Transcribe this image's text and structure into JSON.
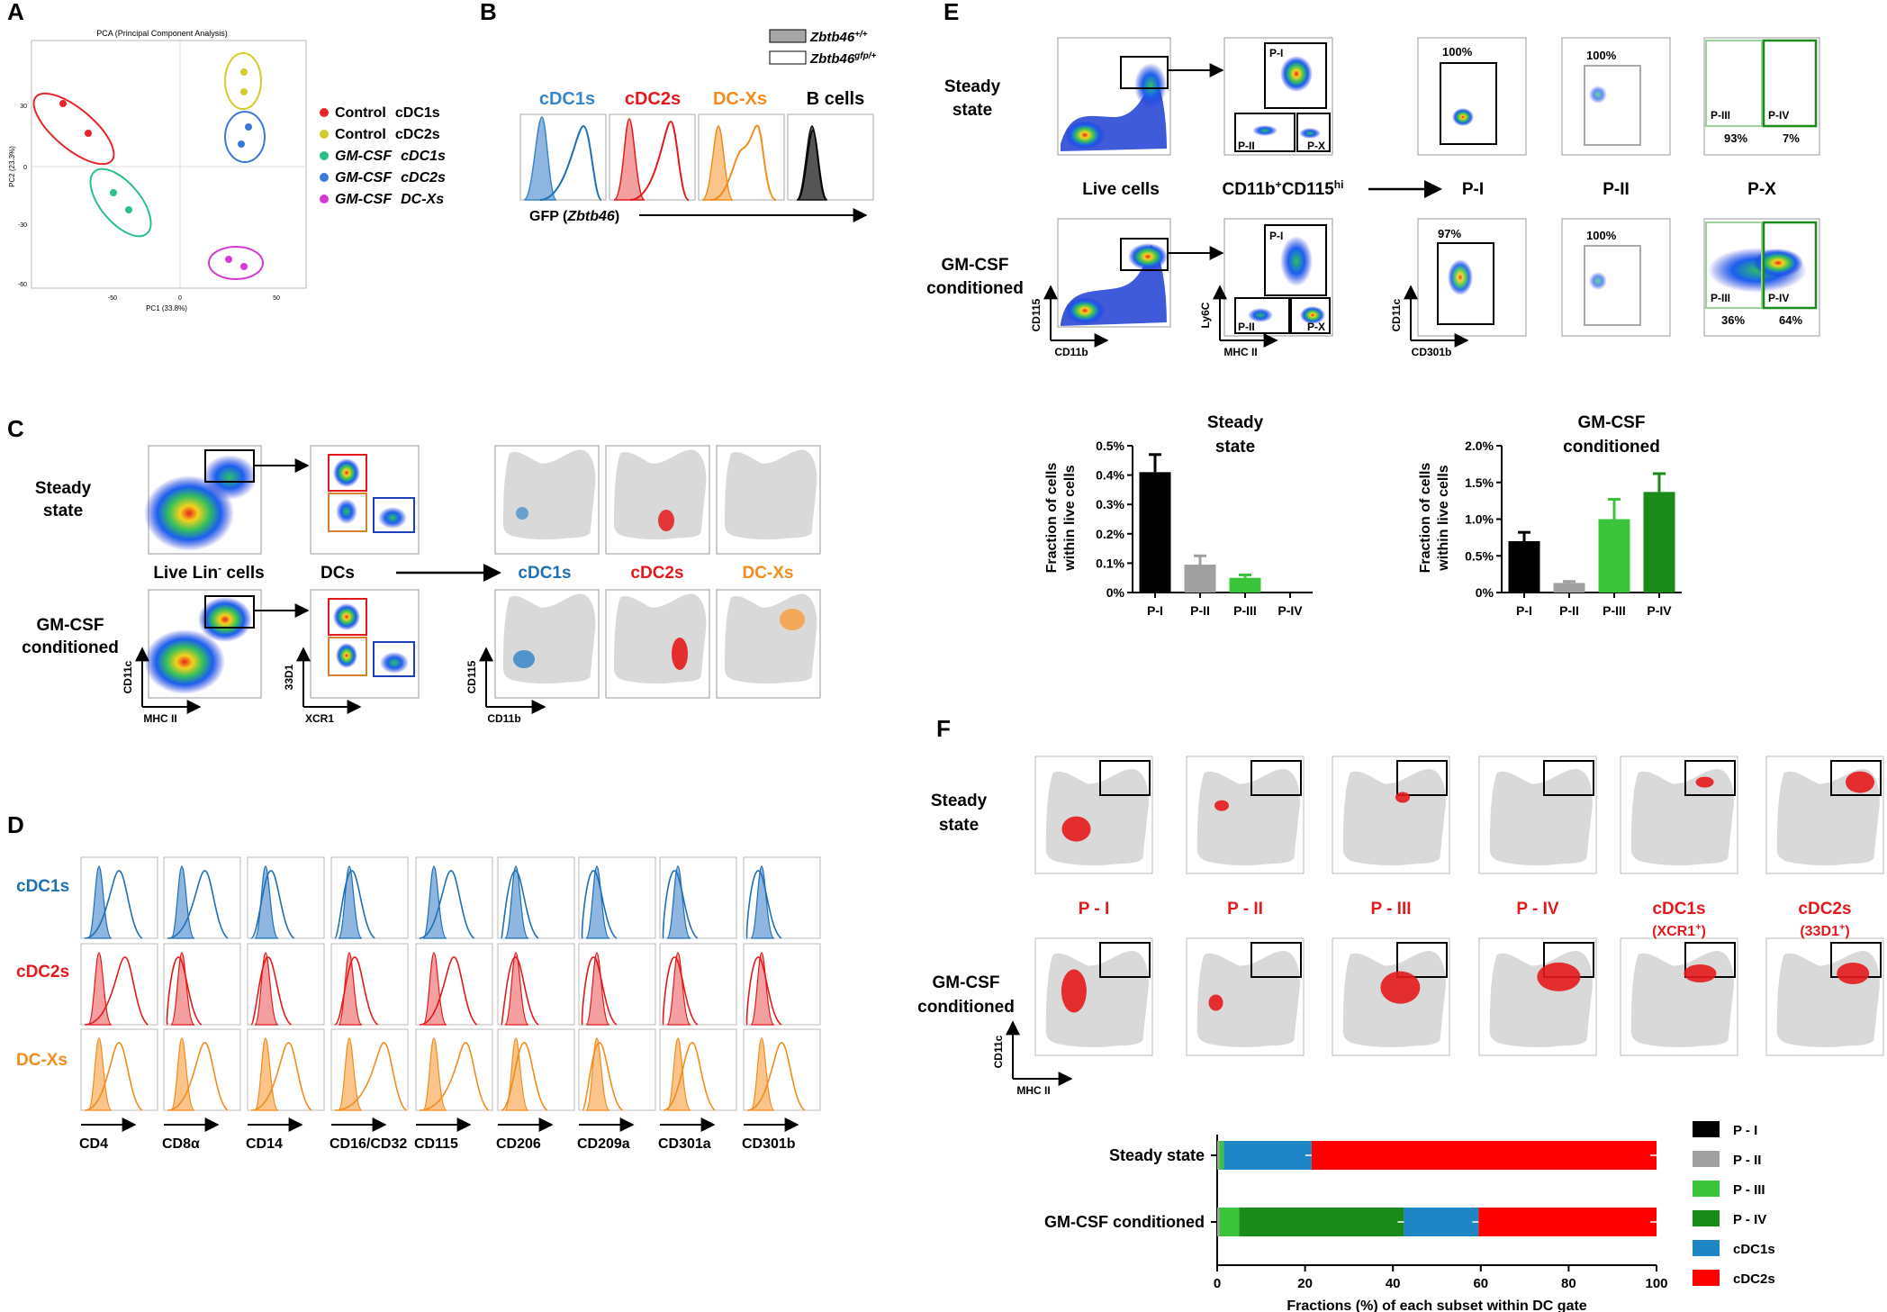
{
  "colors": {
    "control_cdc1": "#e8242a",
    "control_cdc2": "#d4cc2a",
    "gm_cdc1": "#2bbf8a",
    "gm_cdc2": "#3a78d8",
    "gm_dcx": "#d63ad6",
    "cdc1": "#1f6fb5",
    "cdc2": "#e31a1c",
    "dcx": "#f28c1c",
    "bcell": "#222222",
    "pI": "#000000",
    "pII": "#a0a0a0",
    "pIII": "#3bc43b",
    "pIV": "#1a8a1a",
    "bar_cdc1": "#1f86c6",
    "bar_cdc2": "#ff0000",
    "gray_cloud": "#d9d9d9"
  },
  "panels": {
    "A": "A",
    "B": "B",
    "C": "C",
    "D": "D",
    "E": "E",
    "F": "F"
  },
  "panelA": {
    "title": "PCA (Principal Component Analysis)",
    "xlabel": "PC1 (33.8%)",
    "ylabel": "PC2 (23.3%)",
    "xticks": [
      "-50",
      "0",
      "50"
    ],
    "yticks": [
      "30",
      "0",
      "-30",
      "-60"
    ],
    "legend": [
      {
        "a": "Control",
        "b": "cDC1s",
        "italic": false,
        "color": "#e8242a"
      },
      {
        "a": "Control",
        "b": "cDC2s",
        "italic": false,
        "color": "#d4cc2a"
      },
      {
        "a": "GM-CSF",
        "b": "cDC1s",
        "italic": true,
        "color": "#2bbf8a"
      },
      {
        "a": "GM-CSF",
        "b": "cDC2s",
        "italic": true,
        "color": "#3a78d8"
      },
      {
        "a": "GM-CSF",
        "b": "DC-Xs",
        "italic": true,
        "color": "#d63ad6"
      }
    ]
  },
  "panelB": {
    "legend1": "Zbtb46",
    "legend1_sup": "+/+",
    "legend2": "Zbtb46",
    "legend2_sup": "gfp/+",
    "titles": [
      "cDC1s",
      "cDC2s",
      "DC-Xs",
      "B cells"
    ],
    "xlabel_pre": "GFP (",
    "xlabel_gene": "Zbtb46",
    "xlabel_post": ")"
  },
  "panelC": {
    "row1": "Steady",
    "row1b": "state",
    "row2": "GM-CSF",
    "row2b": "conditioned",
    "live": "Live Lin",
    "live_sup": "-",
    "live_post": " cells",
    "dcs": "DCs",
    "subsets": [
      "cDC1s",
      "cDC2s",
      "DC-Xs"
    ],
    "ax1x": "MHC II",
    "ax1y": "CD11c",
    "ax2x": "XCR1",
    "ax2y": "33D1",
    "ax3x": "CD11b",
    "ax3y": "CD115"
  },
  "panelD": {
    "rows": [
      "cDC1s",
      "cDC2s",
      "DC-Xs"
    ],
    "markers": [
      "CD4",
      "CD8α",
      "CD14",
      "CD16/CD32",
      "CD115",
      "CD206",
      "CD209a",
      "CD301a",
      "CD301b"
    ]
  },
  "panelE": {
    "row1": "Steady",
    "row1b": "state",
    "row2": "GM-CSF",
    "row2b": "conditioned",
    "col_live": "Live cells",
    "col_cd11b": "CD11b",
    "col_cd11b_sup": "+",
    "col_cd115": "CD115",
    "col_cd115_sup": "hi",
    "col_pI": "P-I",
    "col_pII": "P-II",
    "col_pX": "P-X",
    "gate_pI": "P-I",
    "gate_pII": "P-II",
    "gate_pX": "P-X",
    "gate_pIII": "P-III",
    "gate_pIV": "P-IV",
    "steady_pct": [
      "100%",
      "100%",
      "93%",
      "7%"
    ],
    "gm_pct": [
      "97%",
      "100%",
      "36%",
      "64%"
    ],
    "ax_live_x": "CD11b",
    "ax_live_y": "CD115",
    "ax_mid_x": "MHC II",
    "ax_mid_y": "Ly6C",
    "ax_p_x": "CD301b",
    "ax_p_y": "CD11c",
    "ylabel1": "Fraction of cells",
    "ylabel2": "within live cells"
  },
  "chart_data": [
    {
      "type": "bar",
      "title": "Steady state",
      "title_lines": [
        "Steady",
        "state"
      ],
      "categories": [
        "P-I",
        "P-II",
        "P-III",
        "P-IV"
      ],
      "values": [
        0.41,
        0.095,
        0.05,
        0.0
      ],
      "errors": [
        0.06,
        0.03,
        0.01,
        0.0
      ],
      "colors": [
        "#000000",
        "#a0a0a0",
        "#3bc43b",
        "#1a8a1a"
      ],
      "ylim": [
        0,
        0.5
      ],
      "yticks": [
        "0%",
        "0.1%",
        "0.2%",
        "0.3%",
        "0.4%",
        "0.5%"
      ],
      "ylabel": "Fraction of cells within live cells"
    },
    {
      "type": "bar",
      "title": "GM-CSF conditioned",
      "title_lines": [
        "GM-CSF",
        "conditioned"
      ],
      "categories": [
        "P-I",
        "P-II",
        "P-III",
        "P-IV"
      ],
      "values": [
        0.7,
        0.13,
        1.0,
        1.37
      ],
      "errors": [
        0.12,
        0.02,
        0.27,
        0.25
      ],
      "colors": [
        "#000000",
        "#a0a0a0",
        "#3bc43b",
        "#1a8a1a"
      ],
      "ylim": [
        0,
        2.0
      ],
      "yticks": [
        "0%",
        "0.5%",
        "1.0%",
        "1.5%",
        "2.0%"
      ],
      "ylabel": "Fraction of cells within live cells"
    },
    {
      "type": "bar",
      "subtype": "stacked-horizontal",
      "categories": [
        "Steady state",
        "GM-CSF conditioned"
      ],
      "series": [
        {
          "name": "P - I",
          "values": [
            0,
            0
          ],
          "color": "#000000"
        },
        {
          "name": "P - II",
          "values": [
            0.5,
            0.5
          ],
          "color": "#a0a0a0"
        },
        {
          "name": "P - III",
          "values": [
            1,
            4.5
          ],
          "color": "#3bc43b"
        },
        {
          "name": "P - IV",
          "values": [
            0,
            37.5
          ],
          "color": "#1a8a1a"
        },
        {
          "name": "cDC1s",
          "values": [
            20,
            17
          ],
          "color": "#1f86c6"
        },
        {
          "name": "cDC2s",
          "values": [
            78.5,
            40.5
          ],
          "color": "#ff0000"
        }
      ],
      "xlim": [
        0,
        100
      ],
      "xticks": [
        "0",
        "20",
        "40",
        "60",
        "80",
        "100"
      ],
      "xlabel": "Fractions (%) of each subset within DC gate"
    }
  ],
  "panelF": {
    "row1": "Steady",
    "row1b": "state",
    "row2": "GM-CSF",
    "row2b": "conditioned",
    "cols": [
      "P - I",
      "P - II",
      "P - III",
      "P - IV",
      "cDC1s",
      "cDC2s"
    ],
    "col5_sub": "(XCR1",
    "col6_sub": "(33D1",
    "sub_sup": "+",
    "sub_close": ")",
    "ax_x": "MHC II",
    "ax_y": "CD11c"
  }
}
